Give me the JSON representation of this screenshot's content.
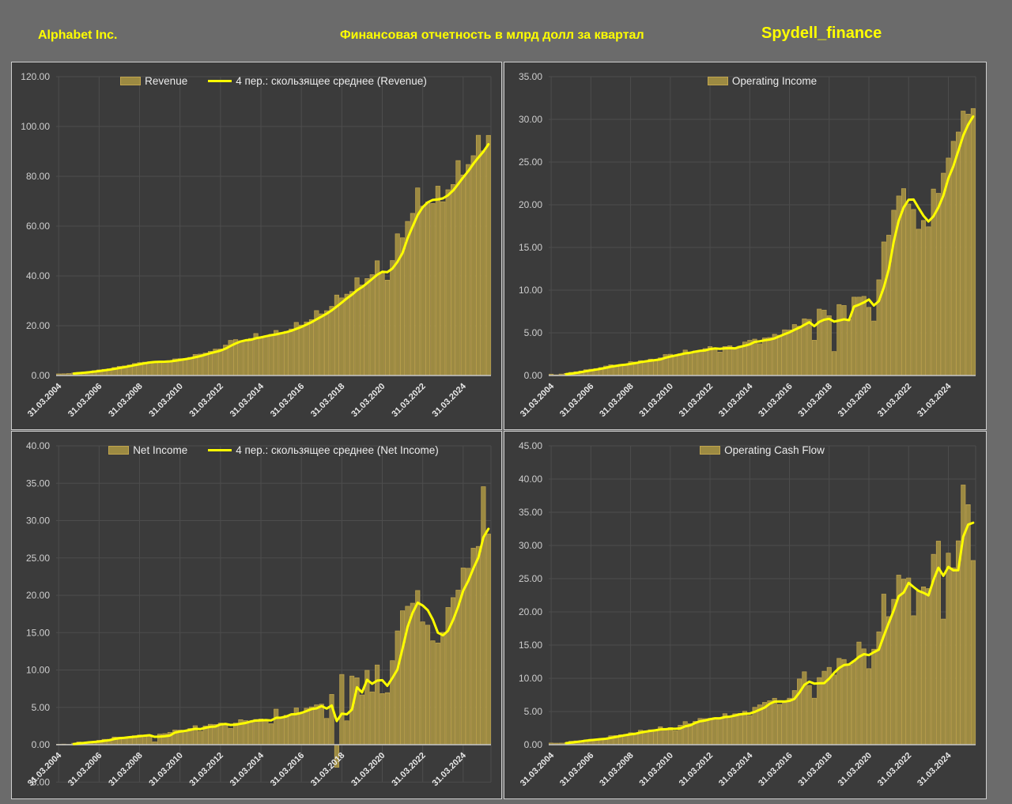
{
  "header": {
    "company": "Alphabet Inc.",
    "title": "Финансовая отчетность в млрд долл за квартал",
    "watermark": "Spydell_finance"
  },
  "colors": {
    "page_bg": "#6b6b6b",
    "panel_bg": "#3b3b3b",
    "panel_border": "#cfcfcf",
    "grid": "#4d4d4d",
    "bar_fill": "#9c8a42",
    "bar_stroke": "#c2a64e",
    "ma_line": "#ffff00",
    "zero_line": "#c8c8c8",
    "axis_text": "#cfcfcf",
    "date_text": "#e8e8e8",
    "legend_text": "#ececec",
    "header_text": "#ffff00"
  },
  "x_axis": {
    "tick_labels": [
      "31.03.2004",
      "31.03.2006",
      "31.03.2008",
      "31.03.2010",
      "31.03.2012",
      "31.03.2014",
      "31.03.2016",
      "31.03.2018",
      "31.03.2020",
      "31.03.2022",
      "31.03.2024"
    ],
    "tick_indices": [
      0,
      8,
      16,
      24,
      32,
      40,
      48,
      56,
      64,
      72,
      80
    ]
  },
  "moving_average_window": 4,
  "chart_data": [
    {
      "type": "bar",
      "title": "Revenue",
      "legend_bar": "Revenue",
      "legend_ma": "4 пер.: скользящее среднее (Revenue)",
      "ylim": [
        0,
        120
      ],
      "ystep": 20,
      "grid": true,
      "legend_position": "top-center",
      "values": [
        0.65,
        0.7,
        0.81,
        1.03,
        1.26,
        1.38,
        1.58,
        1.92,
        2.25,
        2.46,
        2.69,
        3.21,
        3.66,
        3.87,
        4.23,
        4.83,
        5.19,
        5.37,
        5.54,
        5.7,
        5.51,
        5.52,
        5.94,
        6.67,
        6.78,
        6.82,
        7.29,
        8.44,
        8.58,
        9.03,
        9.72,
        10.58,
        10.65,
        12.21,
        14.1,
        14.42,
        13.97,
        14.11,
        14.89,
        16.86,
        15.42,
        15.96,
        16.52,
        18.1,
        17.26,
        17.73,
        18.68,
        21.33,
        20.26,
        21.5,
        22.45,
        26.06,
        24.75,
        26.01,
        27.77,
        32.32,
        31.15,
        32.66,
        33.74,
        39.28,
        36.34,
        38.94,
        40.5,
        46.08,
        41.16,
        38.3,
        46.17,
        56.9,
        55.31,
        61.88,
        65.12,
        75.33,
        68.01,
        69.69,
        69.09,
        76.05,
        69.79,
        74.6,
        76.69,
        86.31,
        80.54,
        84.74,
        88.27,
        96.47,
        90.23,
        96.43
      ]
    },
    {
      "type": "bar",
      "title": "Operating Income",
      "legend_bar": "Operating Income",
      "legend_ma": null,
      "ylim": [
        0,
        35
      ],
      "ystep": 5,
      "grid": true,
      "legend_position": "top-center",
      "values": [
        0.16,
        0.08,
        0.17,
        0.24,
        0.37,
        0.44,
        0.53,
        0.68,
        0.74,
        0.81,
        0.93,
        1.11,
        1.26,
        1.2,
        1.29,
        1.33,
        1.62,
        1.58,
        1.74,
        1.69,
        1.92,
        1.87,
        2.07,
        2.45,
        2.49,
        2.37,
        2.55,
        2.98,
        2.76,
        2.88,
        2.95,
        3.15,
        3.39,
        3.2,
        2.74,
        3.39,
        3.48,
        3.12,
        3.44,
        3.92,
        4.12,
        4.26,
        3.72,
        4.4,
        4.45,
        4.83,
        4.72,
        5.35,
        5.34,
        5.97,
        5.78,
        6.64,
        6.57,
        4.13,
        7.78,
        7.66,
        7.0,
        2.81,
        8.31,
        8.2,
        6.61,
        9.18,
        9.18,
        9.27,
        7.98,
        6.38,
        11.21,
        15.65,
        16.44,
        19.36,
        21.03,
        21.89,
        20.09,
        19.45,
        17.14,
        18.16,
        17.42,
        21.84,
        21.34,
        23.7,
        25.47,
        27.43,
        28.52,
        30.97,
        30.61,
        31.27
      ]
    },
    {
      "type": "bar",
      "title": "Net Income",
      "legend_bar": "Net Income",
      "legend_ma": "4 пер.: скользящее среднее (Net Income)",
      "ylim": [
        -5,
        40
      ],
      "ystep": 5,
      "grid": true,
      "legend_position": "top-center",
      "values": [
        0.06,
        0.08,
        0.05,
        0.2,
        0.37,
        0.34,
        0.38,
        0.37,
        0.59,
        0.72,
        0.73,
        1.03,
        1.0,
        0.93,
        1.07,
        1.21,
        1.31,
        1.25,
        1.29,
        0.38,
        1.42,
        1.48,
        1.64,
        1.97,
        1.96,
        1.84,
        2.17,
        2.54,
        1.8,
        2.51,
        2.73,
        2.71,
        2.89,
        2.79,
        2.18,
        2.89,
        3.35,
        3.23,
        2.97,
        3.38,
        3.45,
        3.35,
        2.81,
        4.76,
        3.59,
        3.93,
        3.98,
        4.92,
        4.21,
        4.88,
        5.06,
        5.33,
        5.43,
        3.52,
        6.73,
        -3.02,
        9.4,
        3.2,
        9.19,
        8.95,
        6.66,
        9.95,
        7.07,
        10.67,
        6.84,
        6.96,
        11.25,
        15.23,
        17.93,
        18.53,
        18.94,
        20.64,
        16.44,
        16.0,
        13.91,
        13.62,
        15.05,
        18.37,
        19.69,
        20.69,
        23.66,
        23.62,
        26.3,
        26.54,
        34.54,
        28.2
      ]
    },
    {
      "type": "bar",
      "title": "Operating Cash Flow",
      "legend_bar": "Operating Cash Flow",
      "legend_ma": null,
      "ylim": [
        0,
        45
      ],
      "ystep": 5,
      "grid": true,
      "legend_position": "top-center",
      "values": [
        0.25,
        0.23,
        0.24,
        0.26,
        0.53,
        0.58,
        0.63,
        0.72,
        0.83,
        0.85,
        0.93,
        0.98,
        1.34,
        1.38,
        1.5,
        1.56,
        1.8,
        1.77,
        2.18,
        2.1,
        2.25,
        2.15,
        2.7,
        2.22,
        2.58,
        2.09,
        2.93,
        3.48,
        3.17,
        3.52,
        3.95,
        3.92,
        3.97,
        4.07,
        3.95,
        4.67,
        4.24,
        4.66,
        4.71,
        5.04,
        4.39,
        5.63,
        5.99,
        6.37,
        6.62,
        6.99,
        6.08,
        6.33,
        7.0,
        8.16,
        9.9,
        10.98,
        8.93,
        7.0,
        10.1,
        11.06,
        11.64,
        10.5,
        13.0,
        12.83,
        12.0,
        12.63,
        15.46,
        14.43,
        11.45,
        14.38,
        17.0,
        22.68,
        19.29,
        21.89,
        25.54,
        24.93,
        25.11,
        19.42,
        23.2,
        23.77,
        23.51,
        28.67,
        30.66,
        18.92,
        28.85,
        26.64,
        30.7,
        39.11,
        36.15,
        27.74
      ]
    }
  ]
}
